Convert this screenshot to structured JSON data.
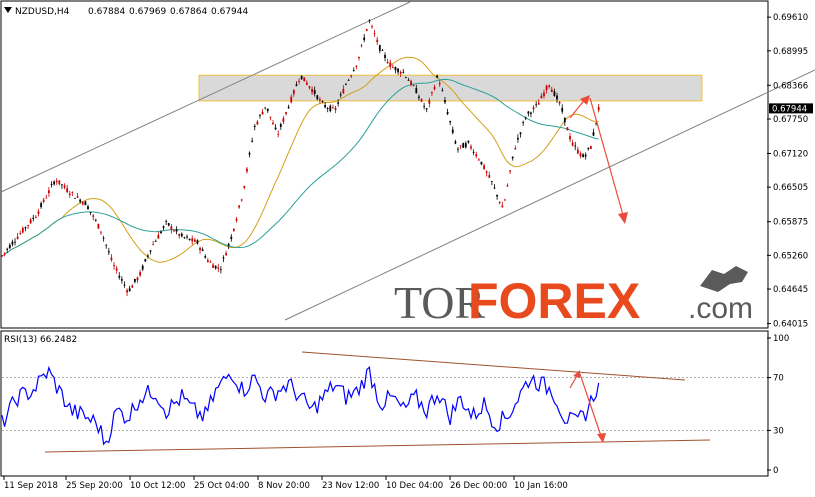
{
  "chart_data": [
    {
      "type": "candlestick",
      "symbol_header": {
        "symbol": "NZDUSD,H4",
        "open": "0.67884",
        "high": "0.67969",
        "low": "0.67864",
        "close": "0.67944"
      },
      "current_price": "0.67944",
      "y_ticks": [
        "0.69610",
        "0.68995",
        "0.68366",
        "0.67750",
        "0.67120",
        "0.66505",
        "0.65875",
        "0.65260",
        "0.64645",
        "0.64015"
      ],
      "ylim": [
        0.6397,
        0.6985
      ],
      "x_ticks": [
        "11 Sep 2018",
        "25 Sep 20:00",
        "10 Oct 12:00",
        "25 Oct 04:00",
        "8 Nov 20:00",
        "23 Nov 12:00",
        "10 Dec 04:00",
        "26 Dec 00:00",
        "10 Jan 16:00"
      ],
      "price_path": [
        [
          0.0,
          0.6525
        ],
        [
          0.02,
          0.656
        ],
        [
          0.045,
          0.66
        ],
        [
          0.07,
          0.6665
        ],
        [
          0.09,
          0.664
        ],
        [
          0.11,
          0.662
        ],
        [
          0.13,
          0.657
        ],
        [
          0.145,
          0.651
        ],
        [
          0.165,
          0.646
        ],
        [
          0.18,
          0.649
        ],
        [
          0.195,
          0.654
        ],
        [
          0.215,
          0.6585
        ],
        [
          0.235,
          0.656
        ],
        [
          0.255,
          0.655
        ],
        [
          0.27,
          0.6515
        ],
        [
          0.285,
          0.65
        ],
        [
          0.3,
          0.656
        ],
        [
          0.315,
          0.664
        ],
        [
          0.33,
          0.676
        ],
        [
          0.345,
          0.68
        ],
        [
          0.36,
          0.6745
        ],
        [
          0.375,
          0.68
        ],
        [
          0.39,
          0.6855
        ],
        [
          0.405,
          0.683
        ],
        [
          0.42,
          0.68
        ],
        [
          0.435,
          0.679
        ],
        [
          0.45,
          0.684
        ],
        [
          0.465,
          0.688
        ],
        [
          0.48,
          0.6955
        ],
        [
          0.495,
          0.69
        ],
        [
          0.51,
          0.687
        ],
        [
          0.525,
          0.686
        ],
        [
          0.54,
          0.683
        ],
        [
          0.555,
          0.679
        ],
        [
          0.57,
          0.6855
        ],
        [
          0.58,
          0.68
        ],
        [
          0.595,
          0.672
        ],
        [
          0.61,
          0.673
        ],
        [
          0.625,
          0.67
        ],
        [
          0.64,
          0.666
        ],
        [
          0.655,
          0.661
        ],
        [
          0.67,
          0.672
        ],
        [
          0.685,
          0.678
        ],
        [
          0.7,
          0.68
        ],
        [
          0.715,
          0.684
        ],
        [
          0.73,
          0.68
        ],
        [
          0.745,
          0.673
        ],
        [
          0.76,
          0.6705
        ],
        [
          0.77,
          0.6725
        ],
        [
          0.78,
          0.6794
        ]
      ],
      "rsi": {
        "label": "RSI(13) 66.2482",
        "y_ticks": [
          "100",
          "70",
          "30",
          "0"
        ],
        "levels": [
          70,
          30
        ],
        "ylim": [
          0,
          100
        ],
        "path": [
          [
            0.0,
            35
          ],
          [
            0.02,
            55
          ],
          [
            0.04,
            60
          ],
          [
            0.06,
            75
          ],
          [
            0.075,
            60
          ],
          [
            0.09,
            45
          ],
          [
            0.11,
            40
          ],
          [
            0.125,
            35
          ],
          [
            0.135,
            20
          ],
          [
            0.15,
            45
          ],
          [
            0.165,
            40
          ],
          [
            0.18,
            55
          ],
          [
            0.2,
            60
          ],
          [
            0.215,
            45
          ],
          [
            0.235,
            55
          ],
          [
            0.25,
            45
          ],
          [
            0.265,
            40
          ],
          [
            0.28,
            60
          ],
          [
            0.3,
            75
          ],
          [
            0.315,
            60
          ],
          [
            0.33,
            70
          ],
          [
            0.345,
            55
          ],
          [
            0.36,
            60
          ],
          [
            0.375,
            65
          ],
          [
            0.39,
            55
          ],
          [
            0.405,
            45
          ],
          [
            0.42,
            55
          ],
          [
            0.435,
            65
          ],
          [
            0.45,
            55
          ],
          [
            0.465,
            60
          ],
          [
            0.48,
            75
          ],
          [
            0.495,
            50
          ],
          [
            0.51,
            55
          ],
          [
            0.525,
            45
          ],
          [
            0.54,
            55
          ],
          [
            0.555,
            45
          ],
          [
            0.57,
            60
          ],
          [
            0.585,
            40
          ],
          [
            0.6,
            55
          ],
          [
            0.615,
            40
          ],
          [
            0.63,
            50
          ],
          [
            0.645,
            35
          ],
          [
            0.66,
            40
          ],
          [
            0.675,
            55
          ],
          [
            0.69,
            70
          ],
          [
            0.705,
            65
          ],
          [
            0.72,
            60
          ],
          [
            0.735,
            40
          ],
          [
            0.75,
            35
          ],
          [
            0.765,
            45
          ],
          [
            0.78,
            66
          ]
        ]
      },
      "range_zone": {
        "top": 0.6855,
        "bottom": 0.6808
      }
    }
  ],
  "watermark": {
    "part1": "TOR",
    "part2": "FOREX",
    "part3": ".com"
  },
  "colors": {
    "candle_bull": "#000000",
    "candle_bear": "#cc0000",
    "ma_slow": "#2aa198",
    "ma_fast": "#d4a017",
    "channel": "#808080",
    "forecast_arrow": "#e74c3c",
    "rsi_line": "#0000ff",
    "rsi_trend": "#a0522d",
    "watermark_grey": "#5a5a5a",
    "watermark_red": "#e8491d",
    "zone_fill": "#d9d9d9",
    "zone_border": "#f0c040"
  }
}
